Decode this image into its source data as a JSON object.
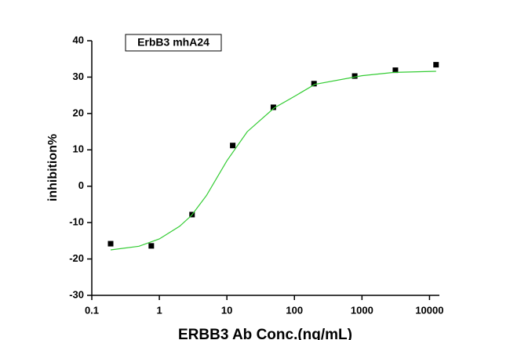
{
  "chart_data": {
    "type": "scatter",
    "title": "ErbB3 mhA24",
    "x_label": "ERBB3 Ab Conc.(ng/mL)",
    "y_label": "inhibition%",
    "log_x": true,
    "xlim": [
      0.1,
      14000
    ],
    "xticks": [
      0.1,
      1,
      10,
      100,
      1000,
      10000
    ],
    "ylim": [
      -30,
      40
    ],
    "yticks": [
      -30,
      -20,
      -10,
      0,
      10,
      20,
      30,
      40
    ],
    "series": [
      {
        "type": "scatter",
        "color": "#000000",
        "x": [
          0.19,
          0.76,
          3.05,
          12.2,
          48.8,
          195,
          781,
          3125,
          12500
        ],
        "values": [
          -15.8,
          -16.4,
          -7.8,
          11.2,
          21.7,
          28.2,
          30.3,
          31.9,
          33.4
        ]
      },
      {
        "type": "line",
        "color": "#33cc33",
        "x": [
          0.19,
          0.5,
          1,
          2,
          3,
          5,
          10,
          20,
          50,
          100,
          200,
          1000,
          3000,
          12500
        ],
        "values": [
          -17.5,
          -16.5,
          -14.5,
          -11,
          -8,
          -2.5,
          7,
          15,
          21.5,
          24.7,
          28,
          30.4,
          31.3,
          31.6
        ]
      }
    ]
  }
}
